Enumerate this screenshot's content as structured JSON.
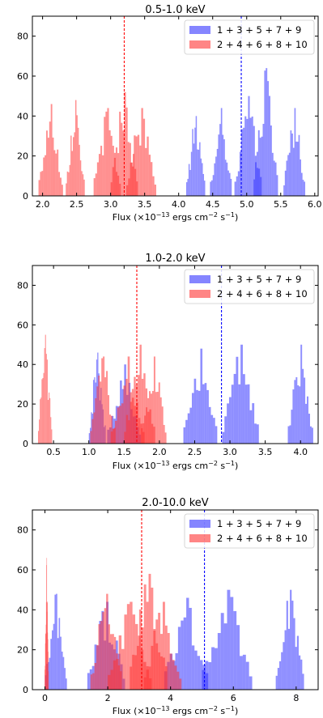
{
  "colors": {
    "blue": "#3333ff",
    "red": "#ff3333",
    "blue_line": "#0000ff",
    "red_line": "#ff0000"
  },
  "chart_data": [
    {
      "type": "histogram",
      "title": "0.5-1.0 keV",
      "xlabel": "Flux (×10",
      "xlabel_exp": "−13",
      "xlabel_unit": " ergs cm",
      "xlabel_exp2": "−2",
      "xlabel_unit2": " s",
      "xlabel_exp3": "−1",
      "xlabel_end": ")",
      "xlim": [
        1.85,
        6.05
      ],
      "ylim": [
        0,
        90
      ],
      "xticks": [
        2.0,
        2.5,
        3.0,
        3.5,
        4.0,
        4.5,
        5.0,
        5.5,
        6.0
      ],
      "xtick_labels": [
        "2.0",
        "2.5",
        "3.0",
        "3.5",
        "4.0",
        "4.5",
        "5.0",
        "5.5",
        "6.0"
      ],
      "yticks": [
        0,
        20,
        40,
        60,
        80
      ],
      "ytick_labels": [
        "0",
        "20",
        "40",
        "60",
        "80"
      ],
      "legend": [
        "1 + 3 + 5 + 7 + 9",
        "2 + 4 + 6 + 8 + 10"
      ],
      "legend_position": "upper right",
      "vlines": [
        {
          "series": "red",
          "x": 3.2
        },
        {
          "series": "blue",
          "x": 4.92
        }
      ],
      "series": [
        {
          "name": "1 + 3 + 5 + 7 + 9",
          "color": "blue",
          "components": [
            {
              "center": 4.25,
              "width": 0.14,
              "peak": 40
            },
            {
              "center": 4.62,
              "width": 0.16,
              "peak": 44
            },
            {
              "center": 5.02,
              "width": 0.2,
              "peak": 50
            },
            {
              "center": 5.28,
              "width": 0.18,
              "peak": 64
            },
            {
              "center": 5.7,
              "width": 0.16,
              "peak": 44
            }
          ]
        },
        {
          "name": "2 + 4 + 6 + 8 + 10",
          "color": "red",
          "components": [
            {
              "center": 2.12,
              "width": 0.18,
              "peak": 46
            },
            {
              "center": 2.48,
              "width": 0.14,
              "peak": 48
            },
            {
              "center": 2.95,
              "width": 0.2,
              "peak": 44
            },
            {
              "center": 3.2,
              "width": 0.2,
              "peak": 52
            },
            {
              "center": 3.45,
              "width": 0.22,
              "peak": 44
            }
          ]
        }
      ]
    },
    {
      "type": "histogram",
      "title": "1.0-2.0 keV",
      "xlabel": "Flux (×10",
      "xlabel_exp": "−13",
      "xlabel_unit": " ergs cm",
      "xlabel_exp2": "−2",
      "xlabel_unit2": " s",
      "xlabel_exp3": "−1",
      "xlabel_end": ")",
      "xlim": [
        0.2,
        4.25
      ],
      "ylim": [
        0,
        90
      ],
      "xticks": [
        0.5,
        1.0,
        1.5,
        2.0,
        2.5,
        3.0,
        3.5,
        4.0
      ],
      "xtick_labels": [
        "0.5",
        "1.0",
        "1.5",
        "2.0",
        "2.5",
        "3.0",
        "3.5",
        "4.0"
      ],
      "yticks": [
        0,
        20,
        40,
        60,
        80
      ],
      "ytick_labels": [
        "0",
        "20",
        "40",
        "60",
        "80"
      ],
      "legend": [
        "1 + 3 + 5 + 7 + 9",
        "2 + 4 + 6 + 8 + 10"
      ],
      "legend_position": "upper right",
      "vlines": [
        {
          "series": "red",
          "x": 1.68
        },
        {
          "series": "blue",
          "x": 2.88
        }
      ],
      "series": [
        {
          "name": "1 + 3 + 5 + 7 + 9",
          "color": "blue",
          "components": [
            {
              "center": 1.12,
              "width": 0.12,
              "peak": 46
            },
            {
              "center": 1.5,
              "width": 0.24,
              "peak": 40
            },
            {
              "center": 2.58,
              "width": 0.24,
              "peak": 48
            },
            {
              "center": 3.15,
              "width": 0.26,
              "peak": 50
            },
            {
              "center": 4.0,
              "width": 0.18,
              "peak": 50
            }
          ]
        },
        {
          "name": "2 + 4 + 6 + 8 + 10",
          "color": "red",
          "components": [
            {
              "center": 0.38,
              "width": 0.1,
              "peak": 55
            },
            {
              "center": 1.2,
              "width": 0.18,
              "peak": 44
            },
            {
              "center": 1.55,
              "width": 0.24,
              "peak": 44
            },
            {
              "center": 1.72,
              "width": 0.22,
              "peak": 50
            },
            {
              "center": 1.92,
              "width": 0.18,
              "peak": 44
            }
          ]
        }
      ]
    },
    {
      "type": "histogram",
      "title": "2.0-10.0 keV",
      "xlabel": "Flux (×10",
      "xlabel_exp": "−13",
      "xlabel_unit": " ergs cm",
      "xlabel_exp2": "−2",
      "xlabel_unit2": " s",
      "xlabel_exp3": "−1",
      "xlabel_end": ")",
      "xlim": [
        -0.4,
        8.7
      ],
      "ylim": [
        0,
        90
      ],
      "xticks": [
        0,
        2,
        4,
        6,
        8
      ],
      "xtick_labels": [
        "0",
        "2",
        "4",
        "6",
        "8"
      ],
      "yticks": [
        0,
        20,
        40,
        60,
        80
      ],
      "ytick_labels": [
        "0",
        "20",
        "40",
        "60",
        "80"
      ],
      "legend": [
        "1 + 3 + 5 + 7 + 9",
        "2 + 4 + 6 + 8 + 10"
      ],
      "legend_position": "upper right",
      "vlines": [
        {
          "series": "red",
          "x": 3.08
        },
        {
          "series": "blue",
          "x": 5.08
        }
      ],
      "series": [
        {
          "name": "1 + 3 + 5 + 7 + 9",
          "color": "blue",
          "components": [
            {
              "center": 0.35,
              "width": 0.35,
              "peak": 48
            },
            {
              "center": 1.95,
              "width": 0.6,
              "peak": 44
            },
            {
              "center": 4.5,
              "width": 0.7,
              "peak": 46
            },
            {
              "center": 5.8,
              "width": 0.8,
              "peak": 50
            },
            {
              "center": 7.8,
              "width": 0.45,
              "peak": 50
            }
          ]
        },
        {
          "name": "2 + 4 + 6 + 8 + 10",
          "color": "red",
          "components": [
            {
              "center": 0.05,
              "width": 0.06,
              "peak": 66
            },
            {
              "center": 1.95,
              "width": 0.5,
              "peak": 48
            },
            {
              "center": 2.7,
              "width": 0.7,
              "peak": 44
            },
            {
              "center": 3.3,
              "width": 0.6,
              "peak": 58
            },
            {
              "center": 3.75,
              "width": 0.6,
              "peak": 44
            }
          ]
        }
      ]
    }
  ]
}
